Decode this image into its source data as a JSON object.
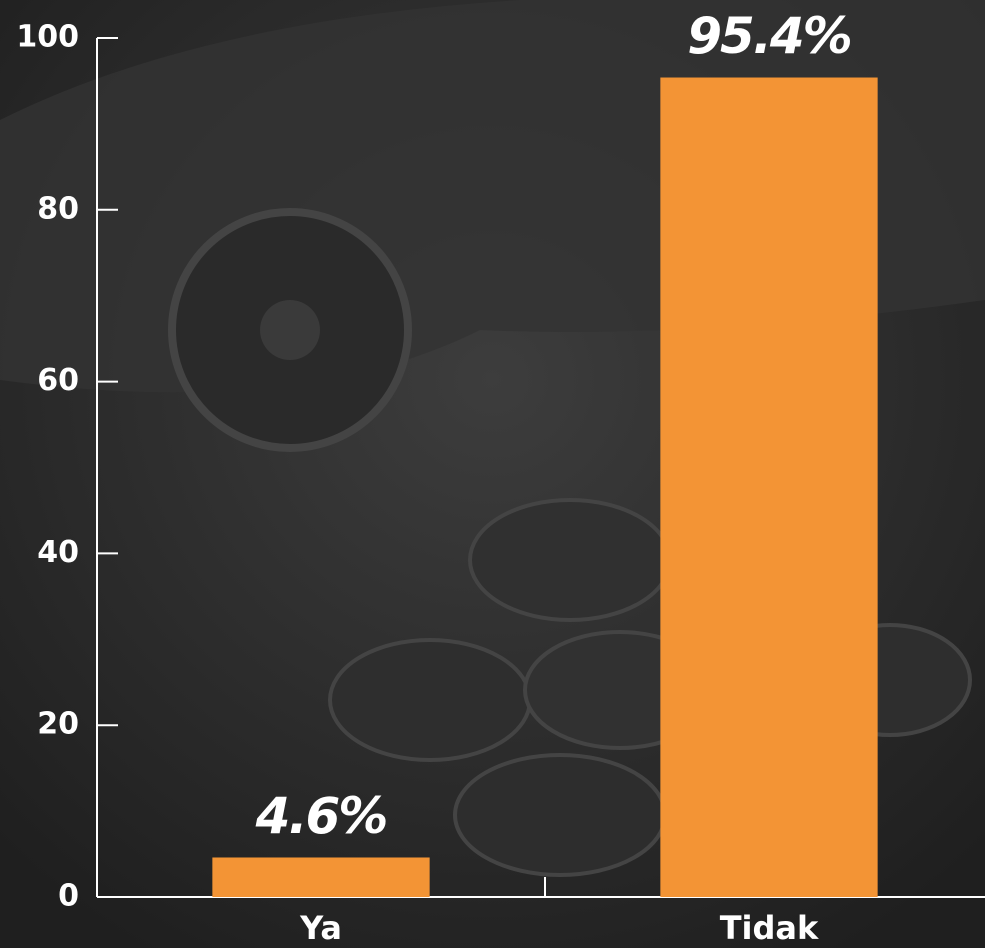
{
  "chart_data": {
    "type": "bar",
    "categories": [
      "Ya",
      "Tidak"
    ],
    "values": [
      4.6,
      95.4
    ],
    "value_labels": [
      "4.6%",
      "95.4%"
    ],
    "color": "#f39435",
    "ylim": [
      0,
      100
    ],
    "yticks": [
      0,
      20,
      40,
      60,
      80,
      100
    ],
    "grid": false
  }
}
